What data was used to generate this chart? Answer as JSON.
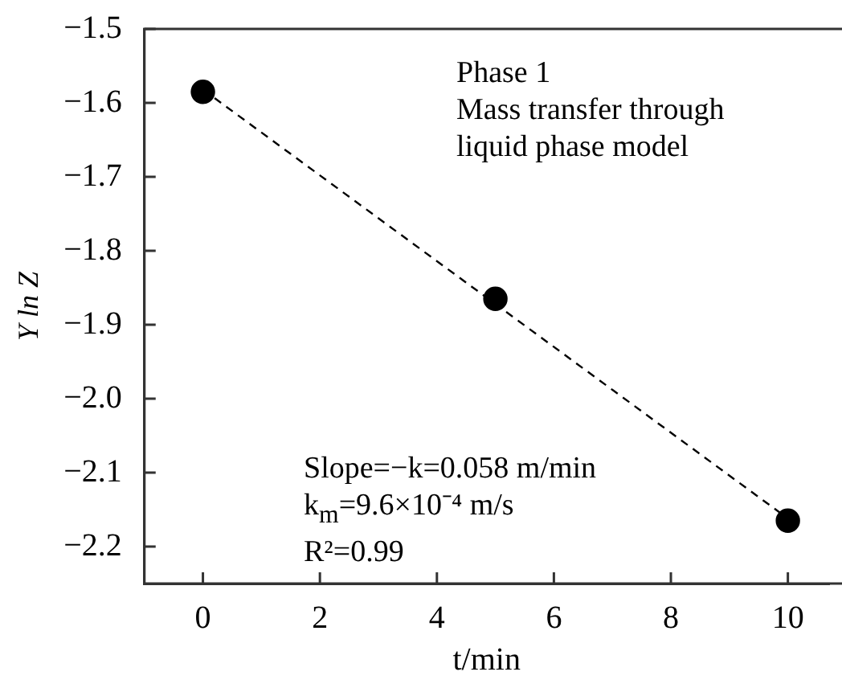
{
  "chart_data": {
    "type": "scatter",
    "xlabel": "t/min",
    "ylabel": "Y ln Z",
    "xlim": [
      -1,
      10.7
    ],
    "xticks": [
      0,
      2,
      4,
      6,
      8,
      10
    ],
    "ylim": [
      -2.25,
      -1.5
    ],
    "yticks": [
      -2.2,
      -2.1,
      {
        "value": -2.0,
        "label": "−2.0"
      },
      -1.9,
      -1.8,
      -1.7,
      -1.6,
      -1.5
    ],
    "grid": false,
    "legend": false,
    "series": [
      {
        "color": "#000000",
        "marker": "circle",
        "x": [
          0,
          5,
          10
        ],
        "values": [
          -1.585,
          -1.865,
          -2.165
        ]
      },
      {
        "type": "line",
        "color": "#000000",
        "marker": "none",
        "line_style": "dashed",
        "x": [
          0,
          10
        ],
        "values": [
          -1.582,
          -2.162
        ]
      }
    ],
    "annotations": [
      "Phase 1",
      "Mass transfer through",
      "liquid phase model",
      "Slope=−k=0.058 m/min",
      "k$_{m}$=9.6×10⁻⁴ m/s",
      "R²=0.99"
    ]
  }
}
